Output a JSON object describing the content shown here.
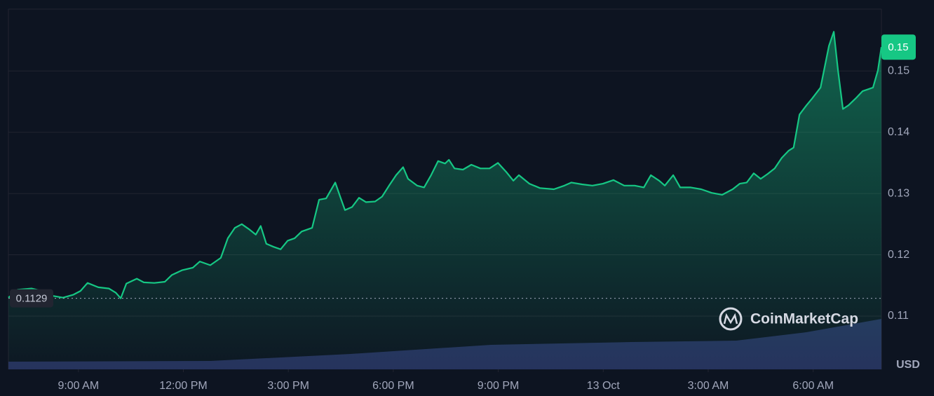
{
  "chart_data": {
    "type": "line",
    "x": [
      7.0,
      7.26,
      7.66,
      7.96,
      8.26,
      8.56,
      8.86,
      9.06,
      9.26,
      9.57,
      9.87,
      10.07,
      10.21,
      10.37,
      10.67,
      10.87,
      11.17,
      11.47,
      11.67,
      11.97,
      12.27,
      12.47,
      12.77,
      13.07,
      13.27,
      13.47,
      13.67,
      13.87,
      14.07,
      14.21,
      14.37,
      14.58,
      14.78,
      14.98,
      15.18,
      15.38,
      15.68,
      15.88,
      16.08,
      16.34,
      16.48,
      16.62,
      16.82,
      17.02,
      17.22,
      17.48,
      17.68,
      17.88,
      18.08,
      18.28,
      18.42,
      18.68,
      18.88,
      19.08,
      19.28,
      19.48,
      19.59,
      19.75,
      19.99,
      20.23,
      20.49,
      20.75,
      20.99,
      21.23,
      21.43,
      21.59,
      21.89,
      22.19,
      22.59,
      22.89,
      23.09,
      23.39,
      23.69,
      23.99,
      24.29,
      24.6,
      24.9,
      25.16,
      25.36,
      25.6,
      25.76,
      26.0,
      26.2,
      26.5,
      26.8,
      27.1,
      27.4,
      27.7,
      27.9,
      28.1,
      28.3,
      28.5,
      28.7,
      28.9,
      29.1,
      29.3,
      29.44,
      29.61,
      29.81,
      29.97,
      30.21,
      30.45,
      30.59,
      30.71,
      30.85,
      31.01,
      31.21,
      31.41,
      31.71,
      31.85,
      31.95
    ],
    "values": [
      0.113,
      0.1143,
      0.1145,
      0.1141,
      0.1133,
      0.113,
      0.1135,
      0.1141,
      0.1154,
      0.1147,
      0.1145,
      0.1138,
      0.1129,
      0.1153,
      0.1161,
      0.1155,
      0.1154,
      0.1156,
      0.1167,
      0.1175,
      0.1179,
      0.1189,
      0.1183,
      0.1195,
      0.1227,
      0.1244,
      0.125,
      0.1242,
      0.1233,
      0.1247,
      0.1218,
      0.1213,
      0.1209,
      0.1223,
      0.1227,
      0.1238,
      0.1244,
      0.129,
      0.1292,
      0.1318,
      0.1295,
      0.1273,
      0.1278,
      0.1293,
      0.1286,
      0.1287,
      0.1295,
      0.1313,
      0.133,
      0.1343,
      0.1324,
      0.1313,
      0.131,
      0.133,
      0.1353,
      0.1349,
      0.1355,
      0.1341,
      0.1339,
      0.1347,
      0.1341,
      0.1341,
      0.135,
      0.1335,
      0.1321,
      0.133,
      0.1316,
      0.1309,
      0.1307,
      0.1313,
      0.1318,
      0.1315,
      0.1313,
      0.1316,
      0.1322,
      0.1313,
      0.1313,
      0.131,
      0.133,
      0.1321,
      0.1313,
      0.133,
      0.131,
      0.131,
      0.1307,
      0.1301,
      0.1298,
      0.1307,
      0.1316,
      0.1318,
      0.1333,
      0.1324,
      0.1332,
      0.1341,
      0.1358,
      0.137,
      0.1375,
      0.1429,
      0.1444,
      0.1455,
      0.1473,
      0.1541,
      0.1564,
      0.1501,
      0.1438,
      0.1444,
      0.1455,
      0.1467,
      0.1473,
      0.1501,
      0.1539
    ],
    "color": "#16c784",
    "xlim": [
      7,
      31.95
    ],
    "ylim": [
      0.1013,
      0.1601
    ],
    "xticks": [
      {
        "value": 9,
        "label": "9:00 AM"
      },
      {
        "value": 12,
        "label": "12:00 PM"
      },
      {
        "value": 15,
        "label": "3:00 PM"
      },
      {
        "value": 18,
        "label": "6:00 PM"
      },
      {
        "value": 21,
        "label": "9:00 PM"
      },
      {
        "value": 24,
        "label": "13 Oct"
      },
      {
        "value": 27,
        "label": "3:00 AM"
      },
      {
        "value": 30,
        "label": "6:00 AM"
      }
    ],
    "yticks": [
      0.11,
      0.12,
      0.13,
      0.14,
      0.15
    ],
    "y_axis_label": "USD",
    "grid": true,
    "baseline": 0.1129,
    "last_price": {
      "value": 0.1539,
      "label": "0.15"
    },
    "watermark": "CoinMarketCap"
  }
}
